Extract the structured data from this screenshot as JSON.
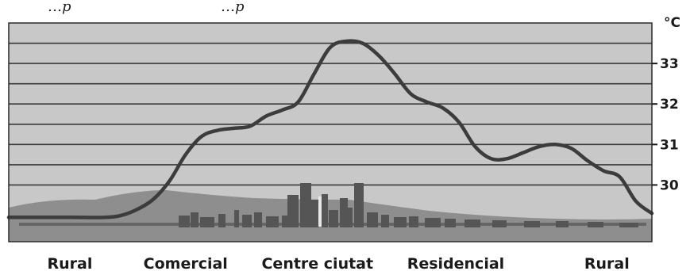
{
  "top_text_fragments": [
    "…p",
    "…p"
  ],
  "chart_data": {
    "type": "area",
    "title": "",
    "ylabel": "°C",
    "xlabel": "",
    "ylim": [
      28.6,
      34.0
    ],
    "yticks": [
      30,
      31,
      32,
      33
    ],
    "grid": true,
    "zones": [
      "Rural",
      "Comercial",
      "Centre ciutat",
      "Residencial",
      "Rural"
    ],
    "x": [
      0,
      0.05,
      0.1,
      0.15,
      0.175,
      0.2,
      0.225,
      0.25,
      0.275,
      0.3,
      0.325,
      0.35,
      0.375,
      0.4,
      0.425,
      0.45,
      0.475,
      0.5,
      0.525,
      0.55,
      0.575,
      0.6,
      0.625,
      0.65,
      0.675,
      0.7,
      0.725,
      0.75,
      0.775,
      0.8,
      0.825,
      0.85,
      0.875,
      0.9,
      0.925,
      0.95,
      0.975,
      1.0
    ],
    "values": [
      29.2,
      29.2,
      29.2,
      29.2,
      29.25,
      29.4,
      29.65,
      30.1,
      30.75,
      31.2,
      31.35,
      31.4,
      31.45,
      31.7,
      31.85,
      32.05,
      32.75,
      33.4,
      33.55,
      33.5,
      33.2,
      32.75,
      32.25,
      32.05,
      31.9,
      31.55,
      30.95,
      30.65,
      30.65,
      30.8,
      30.95,
      31.0,
      30.9,
      30.6,
      30.35,
      30.2,
      29.6,
      29.3
    ],
    "colors": {
      "background": "#c8c8c8",
      "gridline": "#3a3a3a",
      "line": "#3c3c3c",
      "hills": "#8e8e8e",
      "buildings": "#555555"
    }
  }
}
